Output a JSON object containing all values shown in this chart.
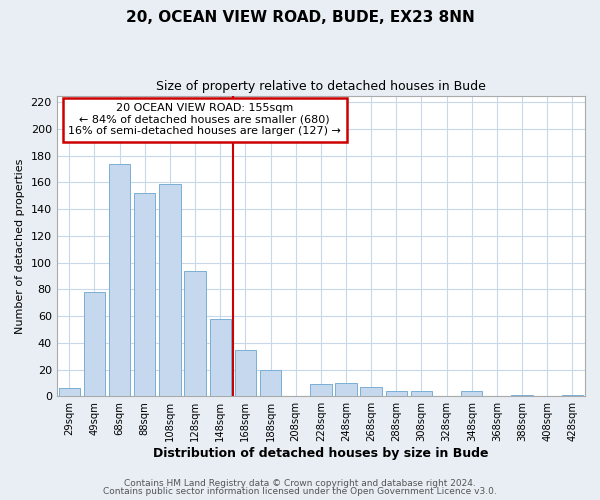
{
  "title": "20, OCEAN VIEW ROAD, BUDE, EX23 8NN",
  "subtitle": "Size of property relative to detached houses in Bude",
  "xlabel": "Distribution of detached houses by size in Bude",
  "ylabel": "Number of detached properties",
  "bar_labels": [
    "29sqm",
    "49sqm",
    "68sqm",
    "88sqm",
    "108sqm",
    "128sqm",
    "148sqm",
    "168sqm",
    "188sqm",
    "208sqm",
    "228sqm",
    "248sqm",
    "268sqm",
    "288sqm",
    "308sqm",
    "328sqm",
    "348sqm",
    "368sqm",
    "388sqm",
    "408sqm",
    "428sqm"
  ],
  "bar_values": [
    6,
    78,
    174,
    152,
    159,
    94,
    58,
    35,
    20,
    0,
    9,
    10,
    7,
    4,
    4,
    0,
    4,
    0,
    1,
    0,
    1
  ],
  "bar_color": "#c5d8ed",
  "bar_edge_color": "#7aafd4",
  "property_line_label": "20 OCEAN VIEW ROAD: 155sqm",
  "annotation_line1": "← 84% of detached houses are smaller (680)",
  "annotation_line2": "16% of semi-detached houses are larger (127) →",
  "annotation_box_color": "#ffffff",
  "annotation_box_edge": "#cc0000",
  "vline_color": "#cc0000",
  "ylim": [
    0,
    225
  ],
  "yticks": [
    0,
    20,
    40,
    60,
    80,
    100,
    120,
    140,
    160,
    180,
    200,
    220
  ],
  "footer1": "Contains HM Land Registry data © Crown copyright and database right 2024.",
  "footer2": "Contains public sector information licensed under the Open Government Licence v3.0.",
  "bg_color": "#e8eef4",
  "plot_bg_color": "#ffffff",
  "grid_color": "#c8d8e8"
}
